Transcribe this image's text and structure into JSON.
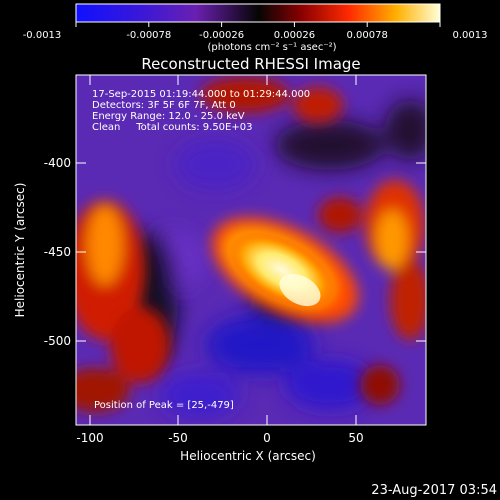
{
  "colorbar": {
    "tick_labels": [
      "-0.0013",
      "-0.00078",
      "-0.00026",
      "0.00026",
      "0.00078",
      "0.0013"
    ],
    "units_label": "(photons cm⁻² s⁻¹ asec⁻²)"
  },
  "image": {
    "title": "Reconstructed RHESSI Image",
    "info_lines": [
      "17-Sep-2015 01:19:44.000 to 01:29:44.000",
      "Detectors: 3F 5F 6F 7F, Att 0",
      "Energy Range: 12.0 - 25.0 keV",
      "Clean     Total counts: 9.50E+03"
    ],
    "peak_label": "Position of Peak = [25,-479]"
  },
  "axes": {
    "xlabel": "Heliocentric X (arcsec)",
    "ylabel": "Heliocentric Y (arcsec)",
    "xticks": [
      "-100",
      "-50",
      "0",
      "50"
    ],
    "yticks": [
      "-400",
      "-450",
      "-500"
    ]
  },
  "footer": {
    "date": "23-Aug-2017 03:54"
  }
}
